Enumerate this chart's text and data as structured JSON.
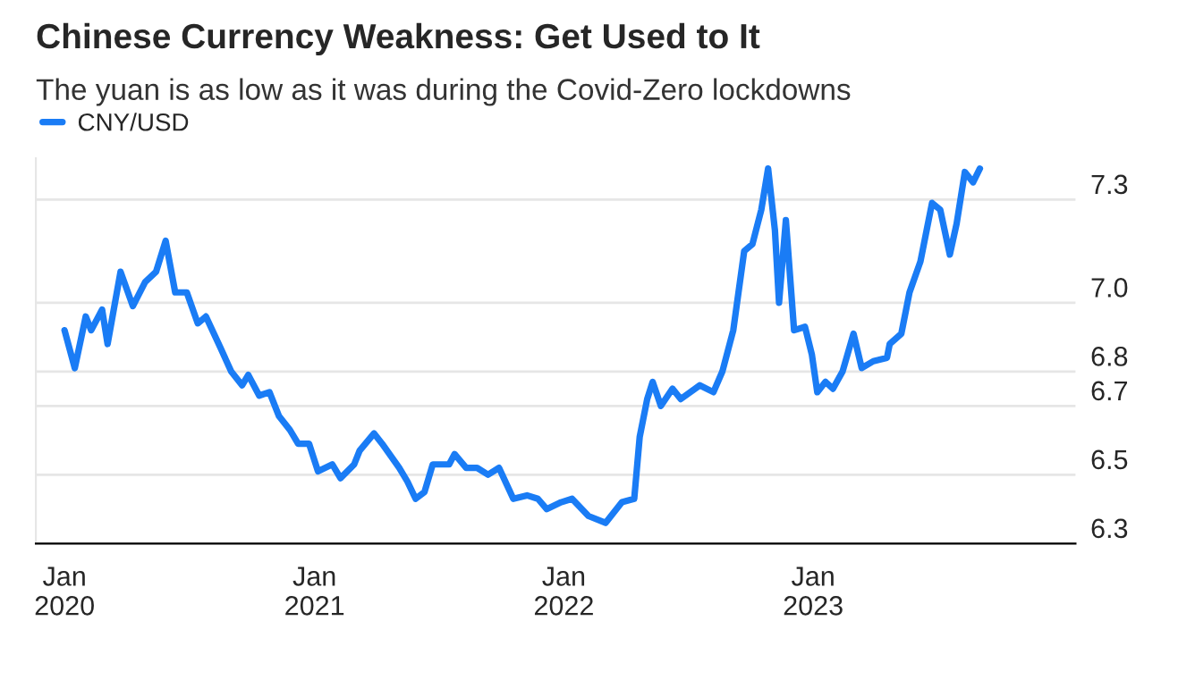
{
  "chart_data": {
    "type": "line",
    "title": "Chinese Currency Weakness: Get Used to It",
    "subtitle": "The yuan is as low as it was during the Covid-Zero lockdowns",
    "x": [
      "2020-01-01",
      "2020-01-16",
      "2020-02-01",
      "2020-02-09",
      "2020-02-25",
      "2020-03-04",
      "2020-03-23",
      "2020-04-10",
      "2020-04-28",
      "2020-05-14",
      "2020-05-28",
      "2020-06-11",
      "2020-06-28",
      "2020-07-14",
      "2020-07-26",
      "2020-08-16",
      "2020-09-01",
      "2020-09-17",
      "2020-09-26",
      "2020-10-12",
      "2020-10-27",
      "2020-11-10",
      "2020-11-26",
      "2020-12-08",
      "2020-12-24",
      "2021-01-06",
      "2021-01-27",
      "2021-02-08",
      "2021-02-28",
      "2021-03-08",
      "2021-03-29",
      "2021-04-10",
      "2021-05-05",
      "2021-05-17",
      "2021-05-29",
      "2021-06-11",
      "2021-06-23",
      "2021-07-17",
      "2021-07-25",
      "2021-08-11",
      "2021-08-27",
      "2021-09-12",
      "2021-09-28",
      "2021-10-19",
      "2021-11-08",
      "2021-11-24",
      "2021-12-07",
      "2021-12-28",
      "2022-01-13",
      "2022-02-06",
      "2022-03-03",
      "2022-03-27",
      "2022-04-14",
      "2022-04-22",
      "2022-05-03",
      "2022-05-11",
      "2022-05-23",
      "2022-06-09",
      "2022-06-21",
      "2022-07-19",
      "2022-08-08",
      "2022-08-21",
      "2022-09-06",
      "2022-09-22",
      "2022-10-04",
      "2022-10-17",
      "2022-10-27",
      "2022-11-06",
      "2022-11-12",
      "2022-11-22",
      "2022-12-04",
      "2022-12-20",
      "2022-12-30",
      "2023-01-07",
      "2023-01-19",
      "2023-01-30",
      "2023-02-13",
      "2023-03-01",
      "2023-03-13",
      "2023-03-30",
      "2023-04-19",
      "2023-04-23",
      "2023-05-10",
      "2023-05-22",
      "2023-06-07",
      "2023-06-24",
      "2023-07-06",
      "2023-07-20",
      "2023-07-30",
      "2023-08-11",
      "2023-08-23",
      "2023-09-02"
    ],
    "series": [
      {
        "name": "CNY/USD",
        "color": "#1a7cf5",
        "values": [
          6.92,
          6.81,
          6.96,
          6.92,
          6.98,
          6.88,
          7.09,
          6.99,
          7.06,
          7.09,
          7.18,
          7.03,
          7.03,
          6.94,
          6.96,
          6.87,
          6.8,
          6.76,
          6.79,
          6.73,
          6.74,
          6.67,
          6.63,
          6.59,
          6.59,
          6.51,
          6.53,
          6.49,
          6.53,
          6.57,
          6.62,
          6.59,
          6.52,
          6.48,
          6.43,
          6.45,
          6.53,
          6.53,
          6.56,
          6.52,
          6.52,
          6.5,
          6.52,
          6.43,
          6.44,
          6.43,
          6.4,
          6.42,
          6.43,
          6.38,
          6.36,
          6.42,
          6.43,
          6.61,
          6.72,
          6.77,
          6.7,
          6.75,
          6.72,
          6.76,
          6.74,
          6.8,
          6.92,
          7.15,
          7.17,
          7.27,
          7.39,
          7.21,
          7.0,
          7.24,
          6.92,
          6.93,
          6.85,
          6.74,
          6.77,
          6.75,
          6.8,
          6.91,
          6.81,
          6.83,
          6.84,
          6.88,
          6.91,
          7.03,
          7.12,
          7.29,
          7.27,
          7.14,
          7.23,
          7.38,
          7.35,
          7.39
        ]
      }
    ],
    "xlim": [
      "2019-11-20",
      "2024-01-20"
    ],
    "xticks": [
      {
        "value": "2020-01-01",
        "label": "Jan\n2020"
      },
      {
        "value": "2021-01-01",
        "label": "Jan\n2021"
      },
      {
        "value": "2022-01-01",
        "label": "Jan\n2022"
      },
      {
        "value": "2023-01-01",
        "label": "Jan\n2023"
      }
    ],
    "ylim": [
      6.3,
      7.42
    ],
    "yticks": [
      6.3,
      6.5,
      6.7,
      6.8,
      {
        "value": 7.0,
        "label": "7.0"
      },
      7.3
    ],
    "grid": "y",
    "legend": "top left",
    "line_style": "solid",
    "marker": "none"
  }
}
